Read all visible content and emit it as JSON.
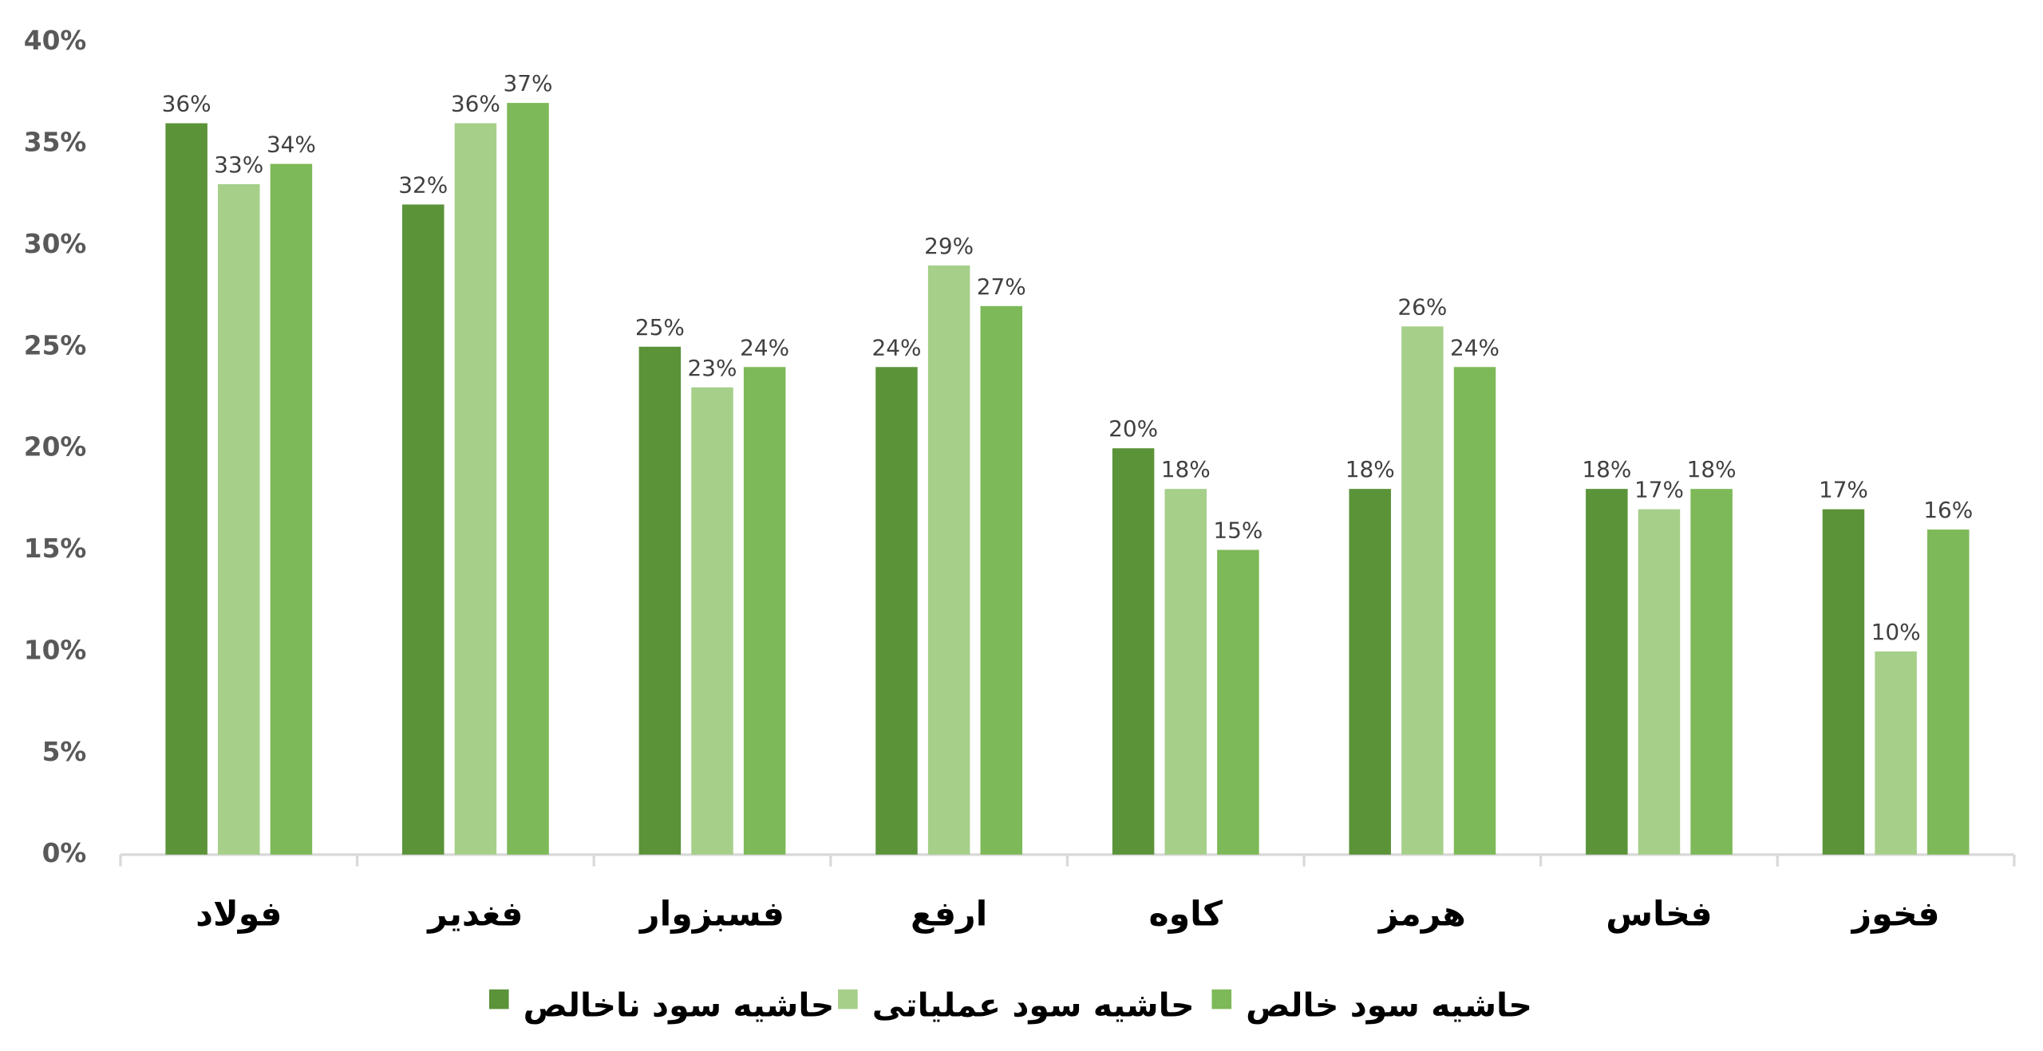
{
  "chart_data": {
    "type": "bar",
    "categories": [
      "فولاد",
      "فغدیر",
      "فسبزوار",
      "ارفع",
      "کاوه",
      "هرمز",
      "فخاس",
      "فخوز"
    ],
    "series": [
      {
        "name": "حاشیه سود ناخالص",
        "color": "#5b9339",
        "values": [
          36,
          32,
          25,
          24,
          20,
          18,
          18,
          17
        ],
        "value_labels": [
          "36%",
          "32%",
          "25%",
          "24%",
          "20%",
          "18%",
          "18%",
          "17%"
        ]
      },
      {
        "name": "حاشیه سود عملیاتی",
        "color": "#a6cf8a",
        "values": [
          33,
          36,
          23,
          29,
          18,
          26,
          17,
          10
        ],
        "value_labels": [
          "33%",
          "36%",
          "23%",
          "29%",
          "18%",
          "26%",
          "17%",
          "10%"
        ]
      },
      {
        "name": "حاشیه سود خالص",
        "color": "#7db958",
        "values": [
          34,
          37,
          24,
          27,
          15,
          24,
          18,
          16
        ],
        "value_labels": [
          "34%",
          "37%",
          "24%",
          "27%",
          "15%",
          "24%",
          "18%",
          "16%"
        ]
      }
    ],
    "ylim": [
      0,
      40
    ],
    "yticks": [
      {
        "value": 0,
        "label": "0%"
      },
      {
        "value": 5,
        "label": "5%"
      },
      {
        "value": 10,
        "label": "10%"
      },
      {
        "value": 15,
        "label": "15%"
      },
      {
        "value": 20,
        "label": "20%"
      },
      {
        "value": 25,
        "label": "25%"
      },
      {
        "value": 30,
        "label": "30%"
      },
      {
        "value": 35,
        "label": "35%"
      },
      {
        "value": 40,
        "label": "40%"
      }
    ],
    "grid": false
  }
}
